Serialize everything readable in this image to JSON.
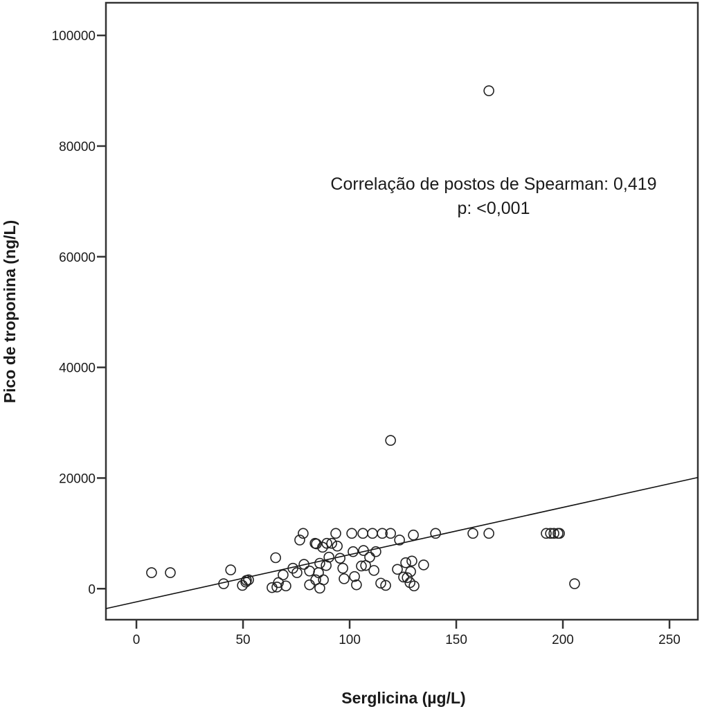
{
  "chart_data": {
    "type": "scatter",
    "title": "",
    "xlabel": "Serglicina (µg/L)",
    "ylabel": "Pico de troponina (ng/L)",
    "xlim": [
      -14.3,
      263.3
    ],
    "ylim": [
      -5600,
      105900
    ],
    "x_ticks": [
      0,
      50,
      100,
      150,
      200,
      250
    ],
    "x_tick_labels": [
      "0",
      "50",
      "100",
      "150",
      "200",
      "250"
    ],
    "y_ticks": [
      0,
      20000,
      40000,
      60000,
      80000,
      100000
    ],
    "y_tick_labels": [
      "0",
      "20000",
      "40000",
      "60000",
      "80000",
      "100000"
    ],
    "grid": false,
    "legend": null,
    "annotations": [
      "Correlação de postos de Spearman: 0,419",
      "p: <0,001"
    ],
    "fit_line": {
      "type": "linear",
      "x": [
        -14.3,
        263.3
      ],
      "y": [
        -3600,
        20100
      ]
    },
    "points": [
      {
        "x": 7.1,
        "y": 2900
      },
      {
        "x": 15.9,
        "y": 2900
      },
      {
        "x": 44.2,
        "y": 3400
      },
      {
        "x": 40.9,
        "y": 900
      },
      {
        "x": 49.7,
        "y": 600
      },
      {
        "x": 51.6,
        "y": 1500
      },
      {
        "x": 52.6,
        "y": 1600
      },
      {
        "x": 51.3,
        "y": 1200
      },
      {
        "x": 63.6,
        "y": 200
      },
      {
        "x": 65.9,
        "y": 300
      },
      {
        "x": 66.6,
        "y": 1100
      },
      {
        "x": 68.8,
        "y": 2500
      },
      {
        "x": 70.1,
        "y": 500
      },
      {
        "x": 65.3,
        "y": 5600
      },
      {
        "x": 73.4,
        "y": 3700
      },
      {
        "x": 75.3,
        "y": 2900
      },
      {
        "x": 76.6,
        "y": 8800
      },
      {
        "x": 78.2,
        "y": 10000
      },
      {
        "x": 78.6,
        "y": 4400
      },
      {
        "x": 81.2,
        "y": 3200
      },
      {
        "x": 81.2,
        "y": 700
      },
      {
        "x": 83.8,
        "y": 8200
      },
      {
        "x": 84.4,
        "y": 8100
      },
      {
        "x": 84.1,
        "y": 1600
      },
      {
        "x": 85.4,
        "y": 2900
      },
      {
        "x": 86.0,
        "y": 4600
      },
      {
        "x": 86.0,
        "y": 100
      },
      {
        "x": 87.3,
        "y": 7500
      },
      {
        "x": 87.7,
        "y": 1600
      },
      {
        "x": 89.0,
        "y": 4200
      },
      {
        "x": 89.3,
        "y": 8200
      },
      {
        "x": 90.3,
        "y": 5700
      },
      {
        "x": 91.6,
        "y": 8200
      },
      {
        "x": 93.5,
        "y": 10000
      },
      {
        "x": 94.2,
        "y": 7700
      },
      {
        "x": 95.5,
        "y": 5500
      },
      {
        "x": 96.8,
        "y": 3700
      },
      {
        "x": 97.4,
        "y": 1800
      },
      {
        "x": 101.0,
        "y": 10000
      },
      {
        "x": 101.6,
        "y": 6700
      },
      {
        "x": 102.3,
        "y": 2200
      },
      {
        "x": 103.2,
        "y": 700
      },
      {
        "x": 105.5,
        "y": 4100
      },
      {
        "x": 106.2,
        "y": 10000
      },
      {
        "x": 106.5,
        "y": 6900
      },
      {
        "x": 107.5,
        "y": 4200
      },
      {
        "x": 109.4,
        "y": 5700
      },
      {
        "x": 110.7,
        "y": 10000
      },
      {
        "x": 111.4,
        "y": 3300
      },
      {
        "x": 112.3,
        "y": 6700
      },
      {
        "x": 114.6,
        "y": 1000
      },
      {
        "x": 115.3,
        "y": 10000
      },
      {
        "x": 116.9,
        "y": 600
      },
      {
        "x": 119.2,
        "y": 10000
      },
      {
        "x": 119.2,
        "y": 26800
      },
      {
        "x": 122.4,
        "y": 3500
      },
      {
        "x": 123.4,
        "y": 8800
      },
      {
        "x": 125.3,
        "y": 2100
      },
      {
        "x": 126.3,
        "y": 4700
      },
      {
        "x": 127.0,
        "y": 2000
      },
      {
        "x": 128.3,
        "y": 1100
      },
      {
        "x": 128.6,
        "y": 3100
      },
      {
        "x": 129.2,
        "y": 5000
      },
      {
        "x": 129.9,
        "y": 9700
      },
      {
        "x": 130.2,
        "y": 500
      },
      {
        "x": 134.7,
        "y": 4300
      },
      {
        "x": 140.3,
        "y": 10000
      },
      {
        "x": 157.8,
        "y": 10000
      },
      {
        "x": 165.3,
        "y": 10000
      },
      {
        "x": 165.3,
        "y": 90000
      },
      {
        "x": 192.2,
        "y": 10000
      },
      {
        "x": 194.2,
        "y": 10000
      },
      {
        "x": 195.8,
        "y": 10000
      },
      {
        "x": 197.7,
        "y": 10000
      },
      {
        "x": 198.4,
        "y": 10000
      },
      {
        "x": 205.5,
        "y": 900
      }
    ]
  }
}
